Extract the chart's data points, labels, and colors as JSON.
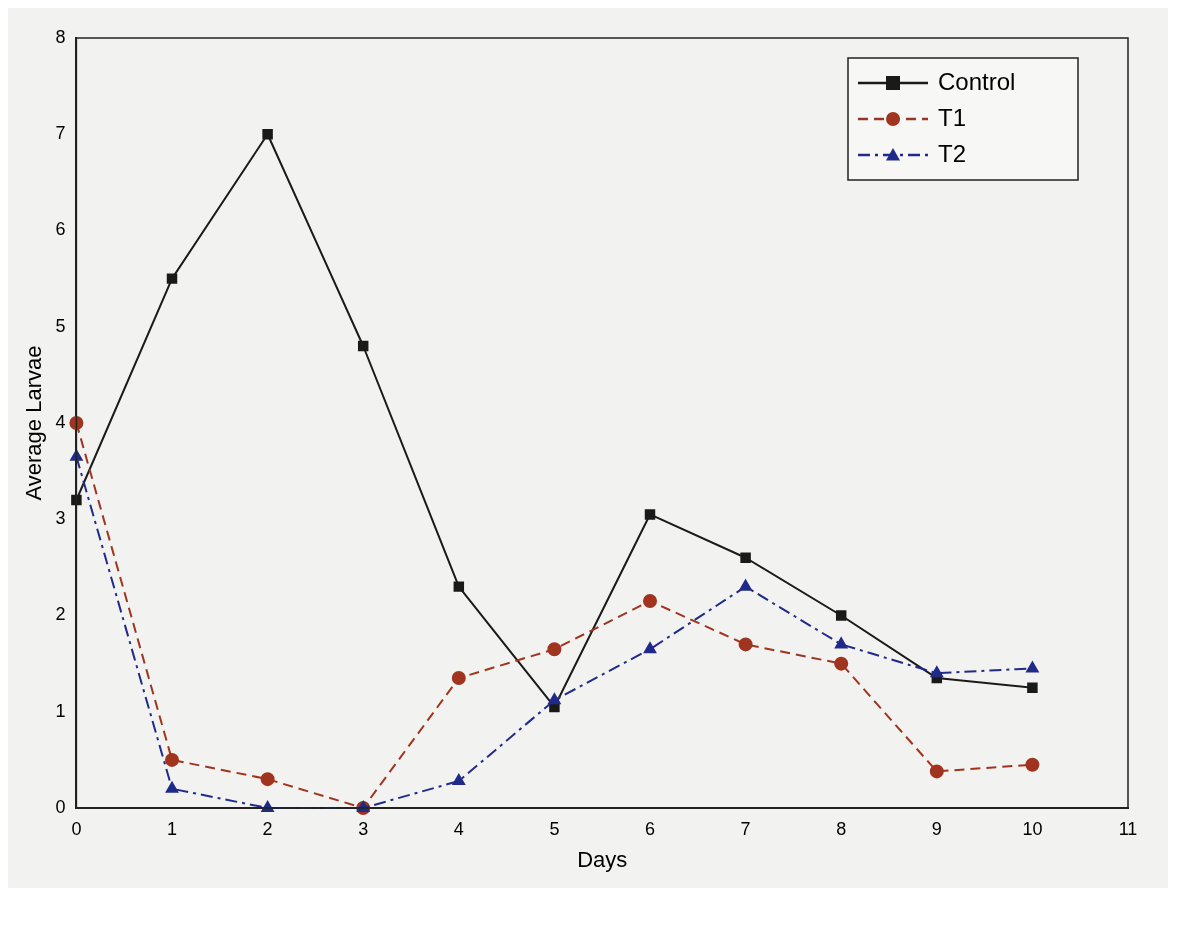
{
  "chart_data": {
    "type": "line",
    "xlabel": "Days",
    "ylabel": "Average Larvae",
    "x": [
      0,
      1,
      2,
      3,
      4,
      5,
      6,
      7,
      8,
      9,
      10
    ],
    "xlim": [
      0,
      11
    ],
    "xticks": [
      0,
      1,
      2,
      3,
      4,
      5,
      6,
      7,
      8,
      9,
      10,
      11
    ],
    "ylim": [
      0,
      8
    ],
    "yticks": [
      0,
      1,
      2,
      3,
      4,
      5,
      6,
      7,
      8
    ],
    "grid": false,
    "legend": "top right",
    "series": [
      {
        "name": "Control",
        "color": "#1a1a1a",
        "marker": "square",
        "line_style": "solid",
        "values": [
          3.2,
          5.5,
          7.0,
          4.8,
          2.3,
          1.05,
          3.05,
          2.6,
          2.0,
          1.35,
          1.25
        ]
      },
      {
        "name": "T1",
        "color": "#a0341e",
        "marker": "circle",
        "line_style": "dashed",
        "values": [
          4.0,
          0.5,
          0.3,
          0.0,
          1.35,
          1.65,
          2.15,
          1.7,
          1.5,
          0.38,
          0.45
        ]
      },
      {
        "name": "T2",
        "color": "#1f2a8a",
        "marker": "triangle",
        "line_style": "dashdot",
        "values": [
          3.65,
          0.2,
          0.0,
          0.0,
          0.28,
          1.12,
          1.65,
          2.3,
          1.7,
          1.4,
          1.45
        ]
      }
    ]
  }
}
